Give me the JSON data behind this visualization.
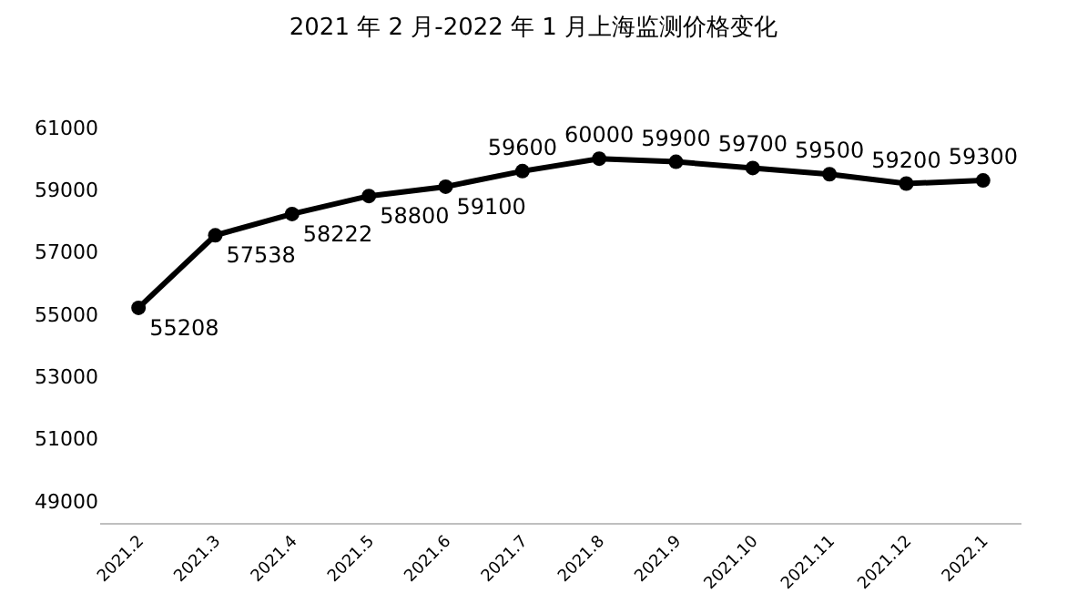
{
  "chart_data": {
    "type": "line",
    "title": "2021 年 2 月-2022 年 1 月上海监测价格变化",
    "categories": [
      "2021.2",
      "2021.3",
      "2021.4",
      "2021.5",
      "2021.6",
      "2021.7",
      "2021.8",
      "2021.9",
      "2021.10",
      "2021.11",
      "2021.12",
      "2022.1"
    ],
    "values": [
      55208,
      57538,
      58222,
      58800,
      59100,
      59600,
      60000,
      59900,
      59700,
      59500,
      59200,
      59300
    ],
    "color": "#000000",
    "marker": "circle",
    "line_style": "solid",
    "data_labels": true,
    "ylim": [
      48300,
      61000
    ],
    "yticks": [
      49000,
      51000,
      53000,
      55000,
      57000,
      59000,
      61000
    ]
  }
}
